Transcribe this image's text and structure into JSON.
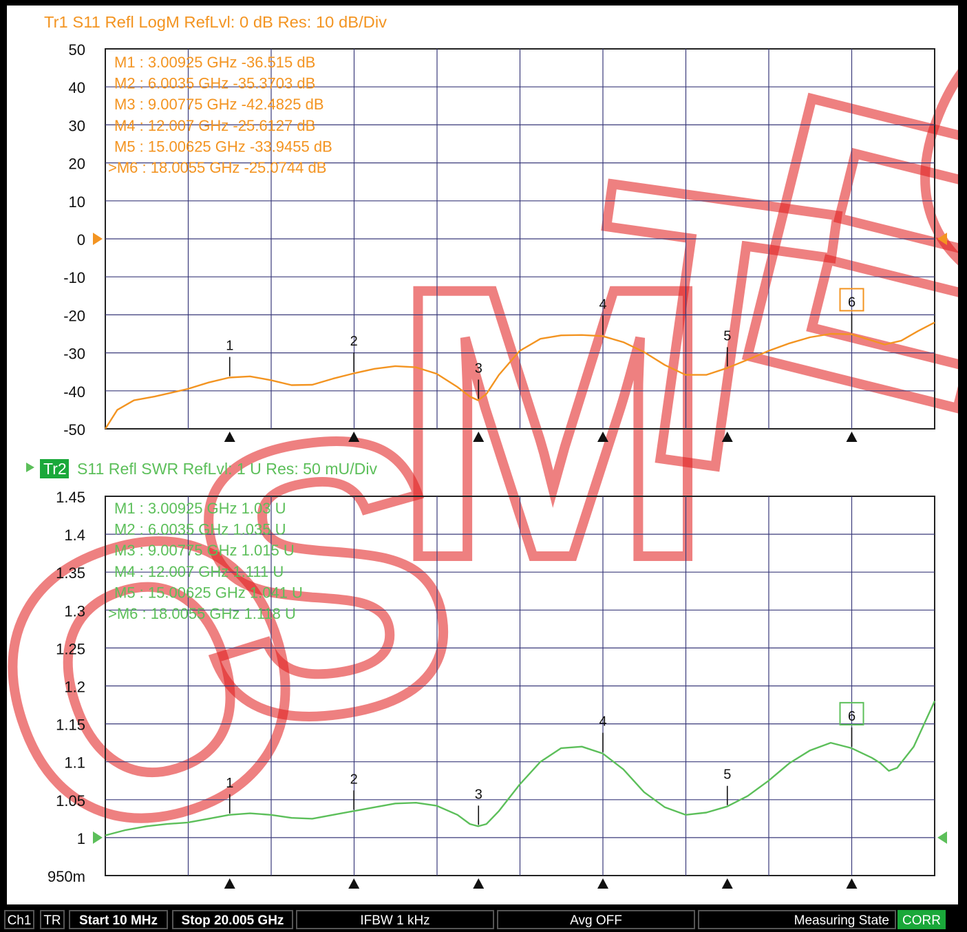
{
  "watermark": "OSMTEC",
  "status_bar": {
    "channel": "Ch1",
    "mode": "TR",
    "start": "Start 10 MHz",
    "stop": "Stop 20.005 GHz",
    "ifbw": "IFBW 1 kHz",
    "avg": "Avg OFF",
    "state": "Measuring State",
    "corr": "CORR"
  },
  "colors": {
    "trace1": "#f39421",
    "trace2": "#5cbf5a",
    "grid": "#3a3a7a",
    "watermark": "#e01818",
    "corr": "#1aa83a"
  },
  "chart_data": [
    {
      "type": "line",
      "trace": "Tr1",
      "title": "Tr1  S11 Refl LogM RefLvl: 0  dB Res: 10  dB/Div",
      "y_ticks": [
        "50",
        "40",
        "30",
        "20",
        "10",
        "0",
        "-10",
        "-20",
        "-30",
        "-40",
        "-50"
      ],
      "ylim": [
        -50,
        50
      ],
      "xlim": [
        0.01,
        20.005
      ],
      "ref_level": 0,
      "grid": true,
      "x": [
        0.01,
        0.3,
        0.7,
        1.2,
        1.6,
        2.0,
        2.5,
        3.0,
        3.5,
        4.0,
        4.5,
        5.0,
        5.5,
        6.0,
        6.5,
        7.0,
        7.5,
        8.0,
        8.5,
        8.8,
        9.0,
        9.2,
        9.5,
        10.0,
        10.5,
        11.0,
        11.5,
        12.0,
        12.5,
        13.0,
        13.5,
        14.0,
        14.5,
        15.0,
        15.5,
        16.0,
        16.5,
        17.0,
        17.5,
        18.0,
        18.5,
        18.8,
        19.2,
        19.6,
        20.005
      ],
      "y": [
        -50,
        -45,
        -42.5,
        -41.5,
        -40.5,
        -39.5,
        -37.8,
        -36.5,
        -36.2,
        -37.2,
        -38.5,
        -38.4,
        -36.8,
        -35.4,
        -34.2,
        -33.5,
        -33.8,
        -35.5,
        -39,
        -41.5,
        -42.5,
        -40.8,
        -35.8,
        -29.5,
        -26.3,
        -25.4,
        -25.3,
        -25.6,
        -27.2,
        -29.8,
        -33.2,
        -35.8,
        -35.8,
        -34,
        -31.8,
        -29.5,
        -27.5,
        -25.9,
        -25,
        -25.1,
        -26.8,
        -27.8,
        -26.8,
        -24.3,
        -22
      ]
    },
    {
      "type": "line",
      "trace": "Tr2",
      "title": "S11 Refl SWR RefLvl: 1  U Res: 50 mU/Div",
      "y_ticks": [
        "1.45",
        "1.4",
        "1.35",
        "1.3",
        "1.25",
        "1.2",
        "1.15",
        "1.1",
        "1.05",
        "1",
        "950m"
      ],
      "ylim": [
        0.95,
        1.45
      ],
      "xlim": [
        0.01,
        20.005
      ],
      "ref_level": 1,
      "grid": true,
      "x": [
        0.01,
        0.5,
        1.0,
        1.5,
        2.0,
        2.5,
        3.0,
        3.5,
        4.0,
        4.5,
        5.0,
        5.5,
        6.0,
        6.5,
        7.0,
        7.5,
        8.0,
        8.5,
        8.8,
        9.0,
        9.2,
        9.5,
        10.0,
        10.5,
        11.0,
        11.5,
        12.0,
        12.5,
        13.0,
        13.5,
        14.0,
        14.5,
        15.0,
        15.5,
        16.0,
        16.5,
        17.0,
        17.5,
        18.0,
        18.5,
        18.7,
        18.9,
        19.1,
        19.5,
        20.005
      ],
      "y": [
        1.003,
        1.01,
        1.015,
        1.018,
        1.02,
        1.025,
        1.03,
        1.032,
        1.03,
        1.026,
        1.025,
        1.03,
        1.035,
        1.04,
        1.045,
        1.046,
        1.042,
        1.03,
        1.018,
        1.015,
        1.018,
        1.035,
        1.07,
        1.1,
        1.118,
        1.12,
        1.111,
        1.09,
        1.06,
        1.04,
        1.03,
        1.033,
        1.041,
        1.055,
        1.075,
        1.098,
        1.115,
        1.125,
        1.118,
        1.105,
        1.098,
        1.088,
        1.092,
        1.12,
        1.18
      ]
    }
  ],
  "markers": {
    "tr1": [
      {
        "n": "1",
        "label": "M1  :   3.00925 GHz  -36.515  dB",
        "x": 3.00925,
        "y": -36.515
      },
      {
        "n": "2",
        "label": "M2  :   6.0035 GHz  -35.3703  dB",
        "x": 6.0035,
        "y": -35.3703
      },
      {
        "n": "3",
        "label": "M3  :   9.00775 GHz  -42.4825  dB",
        "x": 9.00775,
        "y": -42.4825
      },
      {
        "n": "4",
        "label": "M4  :   12.007 GHz  -25.6127  dB",
        "x": 12.007,
        "y": -25.6127
      },
      {
        "n": "5",
        "label": "M5  :   15.00625 GHz  -33.9455  dB",
        "x": 15.00625,
        "y": -33.9455
      },
      {
        "n": "6",
        "label": ">M6  :   18.0055 GHz  -25.0744  dB",
        "x": 18.0055,
        "y": -25.0744,
        "active": true
      }
    ],
    "tr2": [
      {
        "n": "1",
        "label": "M1  :   3.00925 GHz  1.03  U",
        "x": 3.00925,
        "y": 1.03
      },
      {
        "n": "2",
        "label": "M2  :   6.0035 GHz  1.035  U",
        "x": 6.0035,
        "y": 1.035
      },
      {
        "n": "3",
        "label": "M3  :   9.00775 GHz  1.015  U",
        "x": 9.00775,
        "y": 1.015
      },
      {
        "n": "4",
        "label": "M4  :   12.007 GHz  1.111  U",
        "x": 12.007,
        "y": 1.111
      },
      {
        "n": "5",
        "label": "M5  :   15.00625 GHz  1.041  U",
        "x": 15.00625,
        "y": 1.041
      },
      {
        "n": "6",
        "label": ">M6  :   18.0055 GHz  1.118  U",
        "x": 18.0055,
        "y": 1.118,
        "active": true
      }
    ]
  }
}
